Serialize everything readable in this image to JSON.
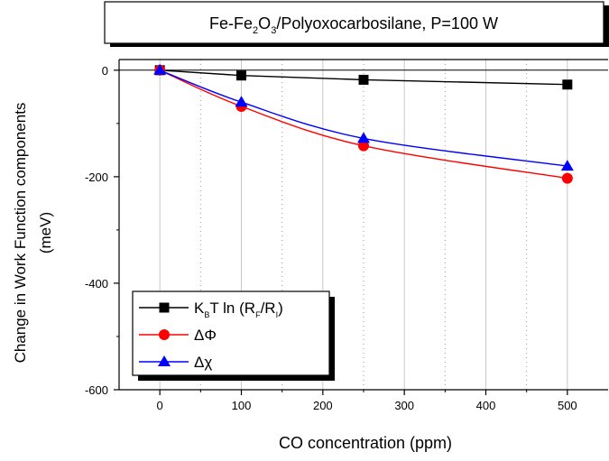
{
  "chart_data": {
    "type": "line",
    "title": {
      "prefix": "Fe-Fe",
      "sub": "2",
      "mid": "O",
      "sub2": "3",
      "suffix": "/Polyoxocarbosilane, P=100 W"
    },
    "xlabel": "CO concentration (ppm)",
    "ylabel_line1": "Change in Work Function components",
    "ylabel_line2": "(meV)",
    "xlim": [
      -50,
      550
    ],
    "ylim": [
      -600,
      20
    ],
    "xticks": [
      0,
      100,
      200,
      300,
      400,
      500
    ],
    "yticks": [
      0,
      -200,
      -400,
      -600
    ],
    "x_minor_grid": [
      50,
      150,
      250,
      350,
      450
    ],
    "grid": "vertical gridlines",
    "legend_position": "bottom-left",
    "x": [
      0,
      100,
      250,
      500
    ],
    "series": [
      {
        "name": "K_B T ln (R_F/R_I)",
        "label_parts": [
          "K",
          "B",
          "T ln (R",
          "F",
          "/R",
          "I",
          ")"
        ],
        "values": [
          0,
          -10,
          -18,
          -27
        ],
        "color": "#000000",
        "marker": "square"
      },
      {
        "name": "ΔΦ",
        "label_parts": [
          "ΔΦ"
        ],
        "values": [
          0,
          -68,
          -142,
          -203
        ],
        "color": "#ff0000",
        "marker": "circle"
      },
      {
        "name": "Δχ",
        "label_parts": [
          "Δχ"
        ],
        "values": [
          0,
          -60,
          -128,
          -180
        ],
        "color": "#0000ff",
        "marker": "triangle"
      }
    ]
  }
}
